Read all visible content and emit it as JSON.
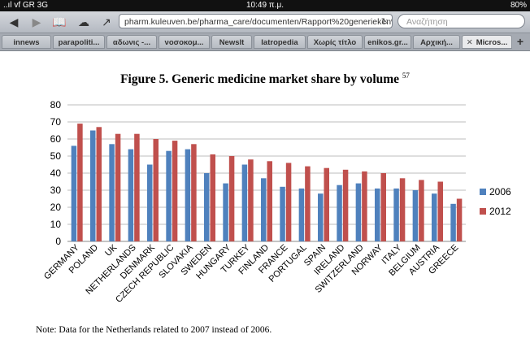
{
  "status_bar": {
    "carrier": "..ıl vf GR 3G",
    "time": "10:49 π.μ.",
    "battery": "80%"
  },
  "browser": {
    "url": "pharm.kuleuven.be/pharma_care/documenten/Rapport%20generieken%2",
    "search_placeholder": "Αναζήτηση",
    "icons": [
      "back-icon",
      "forward-icon",
      "bookmarks-icon",
      "cloud-icon",
      "share-icon",
      "reload-icon"
    ]
  },
  "tabs": [
    {
      "label": "innews",
      "active": false
    },
    {
      "label": "parapoliti...",
      "active": false
    },
    {
      "label": "αδωνις -...",
      "active": false
    },
    {
      "label": "νοσοκομ...",
      "active": false
    },
    {
      "label": "Newslt",
      "active": false
    },
    {
      "label": "Iatropedia",
      "active": false
    },
    {
      "label": "Χωρίς τίτλο",
      "active": false
    },
    {
      "label": "enikos.gr...",
      "active": false
    },
    {
      "label": "Αρχική...",
      "active": false
    },
    {
      "label": "Micros...",
      "active": true
    }
  ],
  "document": {
    "title": "Figure 5. Generic medicine market share by volume",
    "footnote_ref": "57",
    "note": "Note: Data for the Netherlands related to 2007 instead of 2006."
  },
  "chart_data": {
    "type": "bar",
    "categories": [
      "GERMANY",
      "POLAND",
      "UK",
      "NETHERLANDS",
      "DENMARK",
      "CZECH REPUBLIC",
      "SLOVAKIA",
      "SWEDEN",
      "HUNGARY",
      "TURKEY",
      "FINLAND",
      "FRANCE",
      "PORTUGAL",
      "SPAIN",
      "IRELAND",
      "SWITZERLAND",
      "NORWAY",
      "ITALY",
      "BELGIUM",
      "AUSTRIA",
      "GREECE"
    ],
    "series": [
      {
        "name": "2006",
        "color": "#4f81bd",
        "values": [
          56,
          65,
          57,
          54,
          45,
          53,
          54,
          40,
          34,
          45,
          37,
          32,
          31,
          28,
          33,
          34,
          31,
          31,
          30,
          28,
          22
        ]
      },
      {
        "name": "2012",
        "color": "#c0504d",
        "values": [
          69,
          67,
          63,
          63,
          60,
          59,
          57,
          51,
          50,
          48,
          47,
          46,
          44,
          43,
          42,
          41,
          40,
          37,
          36,
          35,
          25
        ]
      }
    ],
    "ylim": [
      0,
      80
    ],
    "yticks": [
      "0",
      "10",
      "20",
      "30",
      "40",
      "50",
      "60",
      "70",
      "80"
    ],
    "grid": true,
    "legend": "right"
  }
}
